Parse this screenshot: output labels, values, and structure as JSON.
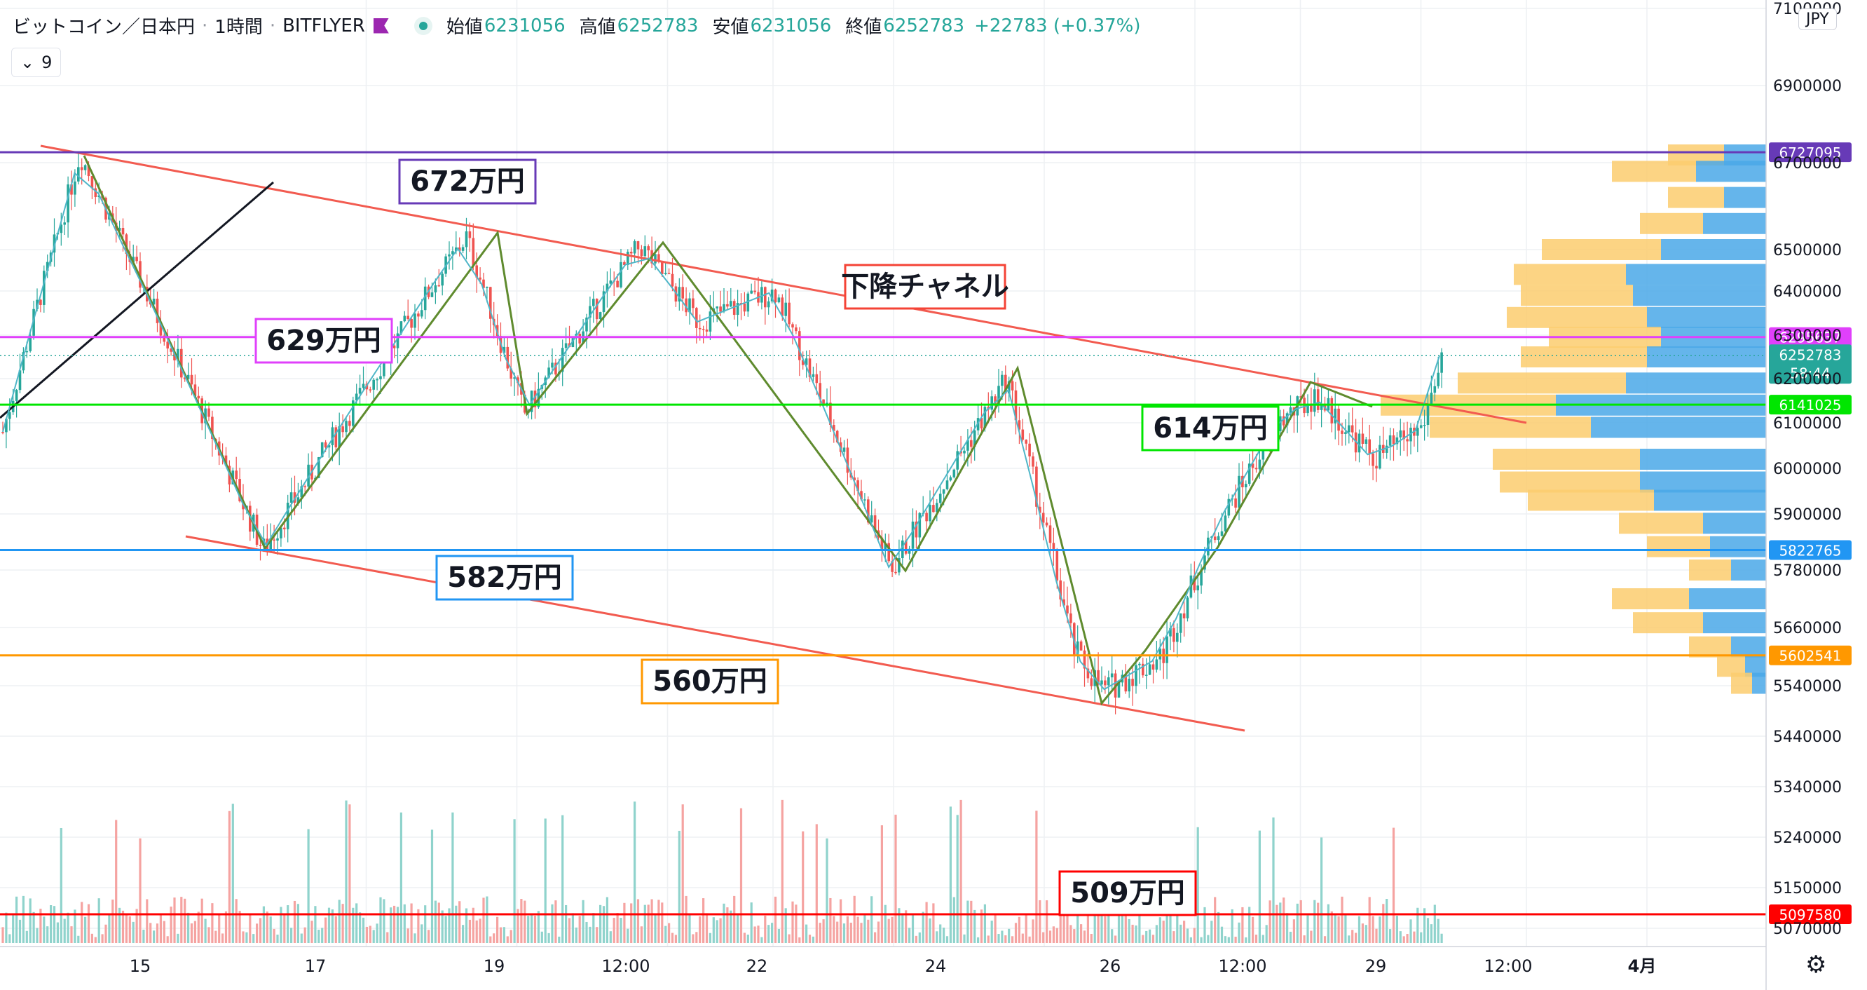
{
  "header": {
    "symbol": "ビットコイン／日本円",
    "interval": "1時間",
    "exchange": "BITFLYER",
    "open_label": "始値",
    "open": "6231056",
    "high_label": "高値",
    "high": "6252783",
    "low_label": "安値",
    "low": "6231056",
    "close_label": "終値",
    "close": "6252783",
    "change": "+22783 (+0.37%)"
  },
  "indicator_toggle": {
    "icon": "chevron-down-icon",
    "count": "9"
  },
  "currency": "JPY",
  "settings_icon": "gear-icon",
  "colors": {
    "up": "#26a69a",
    "down": "#ef5350",
    "volume_up": "#8fd3cc",
    "volume_down": "#f5a3a1",
    "vp_up": "#4aa8e8",
    "vp_down": "#fbcd6e"
  },
  "chart_data": {
    "type": "candlestick",
    "y_ticks": [
      "7100000",
      "6900000",
      "6700000",
      "6500000",
      "6400000",
      "6300000",
      "6200000",
      "6100000",
      "6000000",
      "5900000",
      "5780000",
      "5660000",
      "5540000",
      "5440000",
      "5340000",
      "5240000",
      "5150000",
      "5070000"
    ],
    "x_ticks": [
      {
        "label": "15",
        "t": 0.15
      },
      {
        "label": "17",
        "t": 0.25
      },
      {
        "label": "19",
        "t": 0.35
      },
      {
        "label": "12:00",
        "t": 0.42
      },
      {
        "label": "22",
        "t": 0.5
      },
      {
        "label": "24",
        "t": 0.6
      },
      {
        "label": "26",
        "t": 0.7
      },
      {
        "label": "12:00",
        "t": 0.77
      },
      {
        "label": "29",
        "t": 0.85
      },
      {
        "label": "12:00",
        "t": 0.92
      },
      {
        "label": "4月",
        "t": 1.0
      }
    ],
    "price_levels": [
      {
        "value": 6727095,
        "label": "6727095",
        "color": "#673ab7"
      },
      {
        "value": 6295637,
        "label": "6295637",
        "color": "#e040fb"
      },
      {
        "value": 6141025,
        "label": "6141025",
        "color": "#00e600"
      },
      {
        "value": 5822765,
        "label": "5822765",
        "color": "#2196f3"
      },
      {
        "value": 5602541,
        "label": "5602541",
        "color": "#ff9800"
      },
      {
        "value": 5097580,
        "label": "5097580",
        "color": "#ff0000"
      }
    ],
    "last_price": {
      "value": 6252783,
      "label": "6252783",
      "countdown": "58:44",
      "color": "#26a69a"
    },
    "annotations": [
      {
        "text": "672万円",
        "color": "#673ab7"
      },
      {
        "text": "629万円",
        "color": "#e040fb"
      },
      {
        "text": "下降チャネル",
        "color": "#f44336"
      },
      {
        "text": "614万円",
        "color": "#00e600"
      },
      {
        "text": "582万円",
        "color": "#2196f3"
      },
      {
        "text": "560万円",
        "color": "#ff9800"
      },
      {
        "text": "509万円",
        "color": "#ff0000"
      }
    ],
    "pivots": [
      {
        "t": 0.0,
        "price": 6080000
      },
      {
        "t": 0.04,
        "price": 6720000
      },
      {
        "t": 0.135,
        "price": 5822765
      },
      {
        "t": 0.24,
        "price": 6530000
      },
      {
        "t": 0.27,
        "price": 6120000
      },
      {
        "t": 0.33,
        "price": 6510000
      },
      {
        "t": 0.36,
        "price": 6330000
      },
      {
        "t": 0.4,
        "price": 6400000
      },
      {
        "t": 0.46,
        "price": 5780000
      },
      {
        "t": 0.52,
        "price": 6200000
      },
      {
        "t": 0.555,
        "price": 5610000
      },
      {
        "t": 0.57,
        "price": 5530000
      },
      {
        "t": 0.6,
        "price": 5600000
      },
      {
        "t": 0.63,
        "price": 5880000
      },
      {
        "t": 0.66,
        "price": 6100000
      },
      {
        "t": 0.68,
        "price": 6160000
      },
      {
        "t": 0.71,
        "price": 6020000
      },
      {
        "t": 0.735,
        "price": 6090000
      },
      {
        "t": 0.745,
        "price": 6252783
      }
    ]
  }
}
